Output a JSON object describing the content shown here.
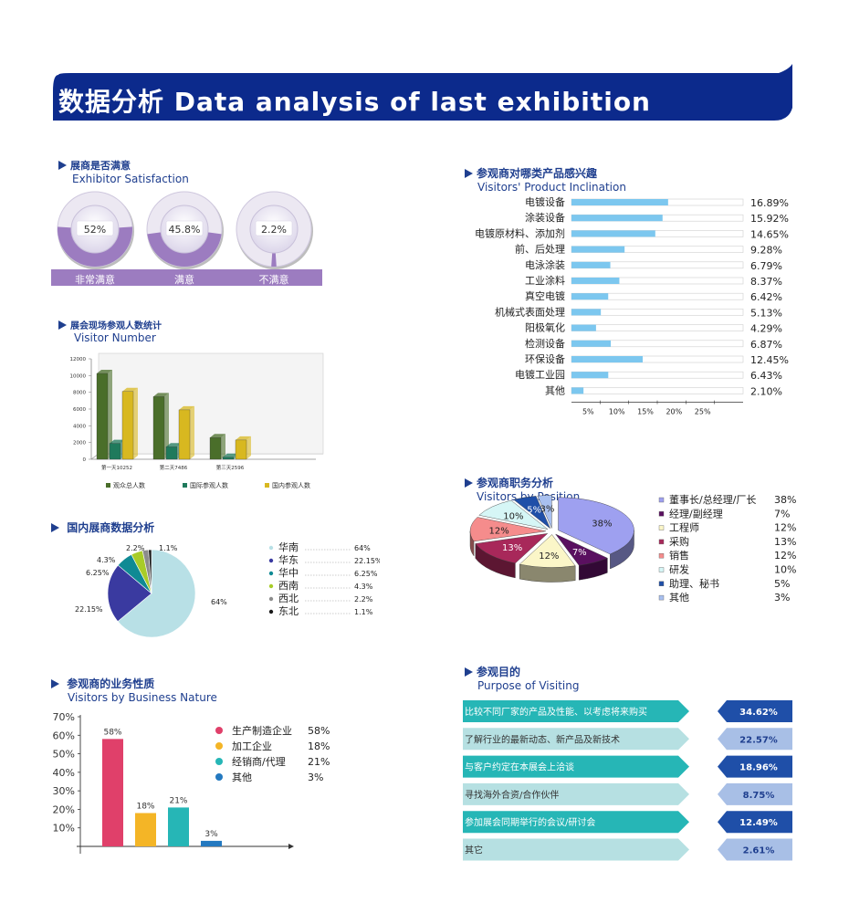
{
  "banner": {
    "title": "数据分析 Data analysis of last exhibition"
  },
  "colors": {
    "banner": "#0c2a8c",
    "accent": "#1f3f8f",
    "bar_blue": "#7cc7ef",
    "purple": "#9c7cc0"
  },
  "sections": {
    "satisfaction": {
      "cn": "展商是否满意",
      "en": "Exhibitor Satisfaction"
    },
    "visitor_number": {
      "cn": "展会现场参观人数统计",
      "en": "Visitor Number"
    },
    "domestic": {
      "cn": "国内展商数据分析",
      "en": ""
    },
    "business": {
      "cn": "参观商的业务性质",
      "en": "Visitors by Business Nature"
    },
    "inclination": {
      "cn": "参观商对哪类产品感兴趣",
      "en": "Visitors' Product Inclination"
    },
    "position": {
      "cn": "参观商职务分析",
      "en": "Visitors by Position"
    },
    "purpose": {
      "cn": "参观目的",
      "en": "Purpose of Visiting"
    }
  },
  "chart_data": [
    {
      "id": "satisfaction",
      "type": "pie",
      "categories": [
        "非常满意",
        "满意",
        "不满意"
      ],
      "values": [
        52,
        45.8,
        2.2
      ],
      "labels": [
        "52%",
        "45.8%",
        "2.2%"
      ]
    },
    {
      "id": "visitor_number",
      "type": "bar",
      "categories": [
        "第一天10252",
        "第二天7486",
        "第三天2596"
      ],
      "series": [
        {
          "name": "观众总人数",
          "values": [
            10252,
            7486,
            2596
          ],
          "color": "#4a6e2a"
        },
        {
          "name": "国际参观人数",
          "values": [
            1900,
            1500,
            250
          ],
          "color": "#1f7a5c"
        },
        {
          "name": "国内参观人数",
          "values": [
            8100,
            5900,
            2300
          ],
          "color": "#d8b820"
        }
      ],
      "yticks": [
        "0",
        "2000",
        "4000",
        "6000",
        "8000",
        "10000",
        "12000"
      ],
      "ylim": [
        0,
        12000
      ]
    },
    {
      "id": "domestic",
      "type": "pie",
      "categories": [
        "华南",
        "华东",
        "华中",
        "西南",
        "西北",
        "东北"
      ],
      "values": [
        64,
        22.15,
        6.25,
        4.3,
        2.2,
        1.1
      ],
      "labels": [
        "64%",
        "22.15%",
        "6.25%",
        "4.3%",
        "2.2%",
        "1.1%"
      ],
      "colors": [
        "#b8e0e6",
        "#3a3aa0",
        "#0f8a94",
        "#a8cc28",
        "#8c8c8c",
        "#1a1a1a"
      ]
    },
    {
      "id": "business",
      "type": "bar",
      "categories": [
        "生产制造企业",
        "加工企业",
        "经销商/代理",
        "其他"
      ],
      "values": [
        58,
        18,
        21,
        3
      ],
      "legend_values": [
        "58%",
        "18%",
        "21%",
        "3%"
      ],
      "bar_labels": [
        "58%",
        "18%",
        "21%",
        "3%"
      ],
      "colors": [
        "#e0406a",
        "#f4b526",
        "#26b6b6",
        "#2479c0"
      ],
      "yticks": [
        "10%",
        "20%",
        "30%",
        "40%",
        "50%",
        "60%",
        "70%"
      ],
      "ylim": [
        0,
        70
      ]
    },
    {
      "id": "inclination",
      "type": "bar",
      "orientation": "horizontal",
      "categories": [
        "电镀设备",
        "涂装设备",
        "电镀原材料、添加剂",
        "前、后处理",
        "电泳涂装",
        "工业涂料",
        "真空电镀",
        "机械式表面处理",
        "阳极氧化",
        "检测设备",
        "环保设备",
        "电镀工业园",
        "其他"
      ],
      "values": [
        16.89,
        15.92,
        14.65,
        9.28,
        6.79,
        8.37,
        6.42,
        5.13,
        4.29,
        6.87,
        12.45,
        6.43,
        2.1
      ],
      "value_labels": [
        "16.89%",
        "15.92%",
        "14.65%",
        "9.28%",
        "6.79%",
        "8.37%",
        "6.42%",
        "5.13%",
        "4.29%",
        "6.87%",
        "12.45%",
        "6.43%",
        "2.10%"
      ],
      "xticks": [
        "5%",
        "10%",
        "15%",
        "20%",
        "25%"
      ],
      "xlim": [
        0,
        30
      ]
    },
    {
      "id": "position",
      "type": "pie",
      "categories": [
        "董事长/总经理/厂长",
        "经理/副经理",
        "工程师",
        "采购",
        "销售",
        "研发",
        "助理、秘书",
        "其他"
      ],
      "values": [
        38,
        7,
        12,
        13,
        12,
        10,
        5,
        3
      ],
      "legend_values": [
        "38%",
        "7%",
        "12%",
        "13%",
        "12%",
        "10%",
        "5%",
        "3%"
      ],
      "slice_labels": [
        "38%",
        "7%",
        "12%",
        "13%",
        "12%",
        "10%",
        "5%",
        "3%"
      ],
      "colors": [
        "#9ea0f0",
        "#5a1060",
        "#fbf6c8",
        "#a8285a",
        "#f58c8c",
        "#d6f6f6",
        "#1f4fa8",
        "#a8c0f0"
      ]
    },
    {
      "id": "purpose",
      "type": "bar",
      "orientation": "horizontal",
      "categories": [
        "比较不同厂家的产品及性能、以考虑将来购买",
        "了解行业的最新动态、新产品及新技术",
        "与客户约定在本展会上洽谈",
        "寻找海外合资/合作伙伴",
        "参加展会同期举行的会议/研讨会",
        "其它"
      ],
      "values": [
        34.62,
        22.57,
        18.96,
        8.75,
        12.49,
        2.61
      ],
      "value_labels": [
        "34.62%",
        "22.57%",
        "18.96%",
        "8.75%",
        "12.49%",
        "2.61%"
      ]
    }
  ]
}
